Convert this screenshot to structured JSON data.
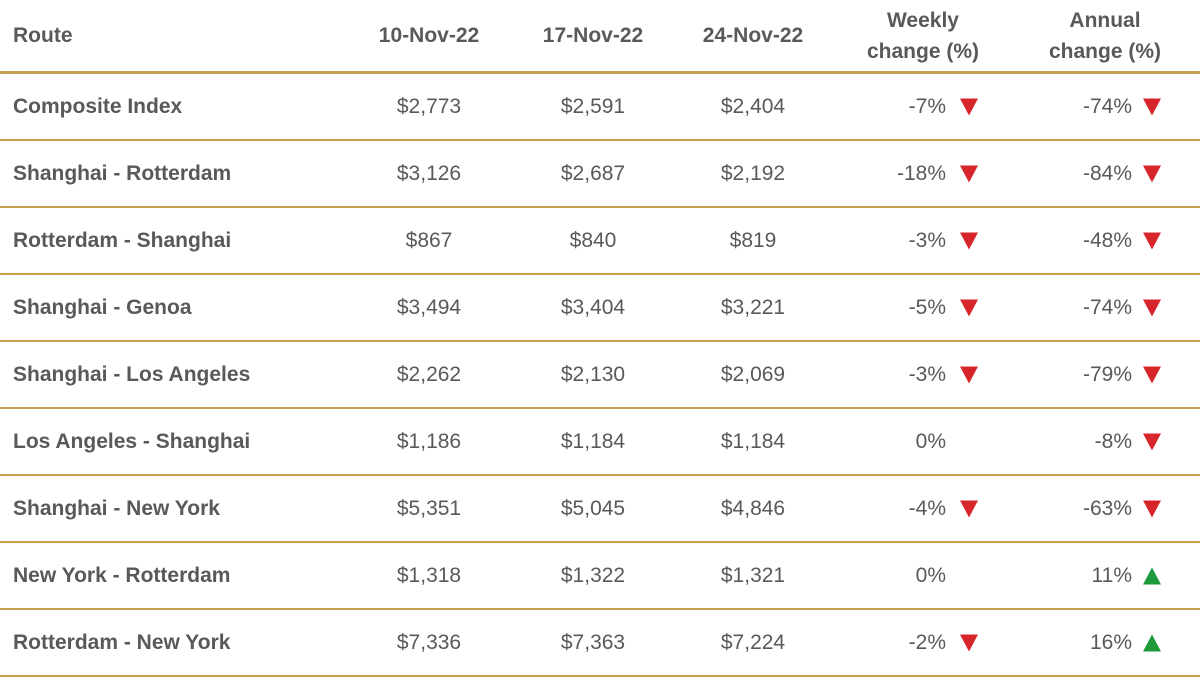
{
  "header": {
    "route": "Route",
    "date1": "10-Nov-22",
    "date2": "17-Nov-22",
    "date3": "24-Nov-22",
    "weekly_line1": "Weekly",
    "weekly_line2": "change (%)",
    "annual_line1": "Annual",
    "annual_line2": "change (%)"
  },
  "colors": {
    "rule": "#c9a24c",
    "down": "#d7262b",
    "up": "#1e9a3a",
    "text": "#595959"
  },
  "rows": [
    {
      "route": "Composite Index",
      "d1": "$2,773",
      "d2": "$2,591",
      "d3": "$2,404",
      "weekly": "-7%",
      "weekly_dir": "down",
      "annual": "-74%",
      "annual_dir": "down"
    },
    {
      "route": "Shanghai - Rotterdam",
      "d1": "$3,126",
      "d2": "$2,687",
      "d3": "$2,192",
      "weekly": "-18%",
      "weekly_dir": "down",
      "annual": "-84%",
      "annual_dir": "down"
    },
    {
      "route": "Rotterdam - Shanghai",
      "d1": "$867",
      "d2": "$840",
      "d3": "$819",
      "weekly": "-3%",
      "weekly_dir": "down",
      "annual": "-48%",
      "annual_dir": "down"
    },
    {
      "route": "Shanghai - Genoa",
      "d1": "$3,494",
      "d2": "$3,404",
      "d3": "$3,221",
      "weekly": "-5%",
      "weekly_dir": "down",
      "annual": "-74%",
      "annual_dir": "down"
    },
    {
      "route": "Shanghai - Los Angeles",
      "d1": "$2,262",
      "d2": "$2,130",
      "d3": "$2,069",
      "weekly": "-3%",
      "weekly_dir": "down",
      "annual": "-79%",
      "annual_dir": "down"
    },
    {
      "route": "Los Angeles - Shanghai",
      "d1": "$1,186",
      "d2": "$1,184",
      "d3": "$1,184",
      "weekly": "0%",
      "weekly_dir": "none",
      "annual": "-8%",
      "annual_dir": "down"
    },
    {
      "route": "Shanghai - New York",
      "d1": "$5,351",
      "d2": "$5,045",
      "d3": "$4,846",
      "weekly": "-4%",
      "weekly_dir": "down",
      "annual": "-63%",
      "annual_dir": "down"
    },
    {
      "route": "New York - Rotterdam",
      "d1": "$1,318",
      "d2": "$1,322",
      "d3": "$1,321",
      "weekly": "0%",
      "weekly_dir": "none",
      "annual": "11%",
      "annual_dir": "up"
    },
    {
      "route": "Rotterdam - New York",
      "d1": "$7,336",
      "d2": "$7,363",
      "d3": "$7,224",
      "weekly": "-2%",
      "weekly_dir": "down",
      "annual": "16%",
      "annual_dir": "up"
    }
  ]
}
